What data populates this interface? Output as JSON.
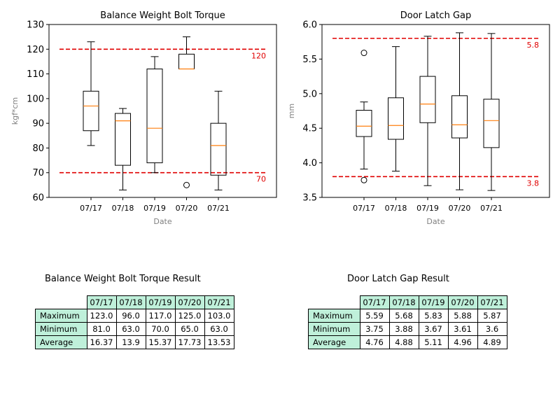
{
  "chart_data": [
    {
      "type": "box",
      "title": "Balance Weight Bolt Torque",
      "xlabel": "Date",
      "ylabel": "kgf*cm",
      "ylim": [
        60,
        130
      ],
      "yticks": [
        60,
        70,
        80,
        90,
        100,
        110,
        120,
        130
      ],
      "categories": [
        "07/17",
        "07/18",
        "07/19",
        "07/20",
        "07/21"
      ],
      "boxes": [
        {
          "min": 81,
          "q1": 87,
          "median": 97,
          "q3": 103,
          "max": 123,
          "outliers": []
        },
        {
          "min": 63,
          "q1": 73,
          "median": 91,
          "q3": 94,
          "max": 96,
          "outliers": []
        },
        {
          "min": 70,
          "q1": 74,
          "median": 88,
          "q3": 112,
          "max": 117,
          "outliers": []
        },
        {
          "min": 112,
          "q1": 112,
          "median": 112,
          "q3": 118,
          "max": 125,
          "outliers": [
            65
          ]
        },
        {
          "min": 63,
          "q1": 69,
          "median": 81,
          "q3": 90,
          "max": 103,
          "outliers": []
        }
      ],
      "limits": [
        {
          "value": 120,
          "label": "120"
        },
        {
          "value": 70,
          "label": "70"
        }
      ],
      "colors": {
        "box": "#000000",
        "median": "#ff7f0e",
        "limit": "#e00000",
        "axis_label": "#808080"
      }
    },
    {
      "type": "box",
      "title": "Door Latch Gap",
      "xlabel": "Date",
      "ylabel": "mm",
      "ylim": [
        3.5,
        6.0
      ],
      "yticks": [
        "3.5",
        "4.0",
        "4.5",
        "5.0",
        "5.5",
        "6.0"
      ],
      "categories": [
        "07/17",
        "07/18",
        "07/19",
        "07/20",
        "07/21"
      ],
      "boxes": [
        {
          "min": 3.91,
          "q1": 4.38,
          "median": 4.53,
          "q3": 4.76,
          "max": 4.88,
          "outliers": [
            5.59,
            3.75
          ]
        },
        {
          "min": 3.88,
          "q1": 4.34,
          "median": 4.54,
          "q3": 4.94,
          "max": 5.68,
          "outliers": []
        },
        {
          "min": 3.67,
          "q1": 4.58,
          "median": 4.85,
          "q3": 5.25,
          "max": 5.83,
          "outliers": []
        },
        {
          "min": 3.61,
          "q1": 4.36,
          "median": 4.55,
          "q3": 4.97,
          "max": 5.88,
          "outliers": []
        },
        {
          "min": 3.6,
          "q1": 4.22,
          "median": 4.61,
          "q3": 4.92,
          "max": 5.87,
          "outliers": []
        }
      ],
      "limits": [
        {
          "value": 5.8,
          "label": "5.8"
        },
        {
          "value": 3.8,
          "label": "3.8"
        }
      ],
      "colors": {
        "box": "#000000",
        "median": "#ff7f0e",
        "limit": "#e00000",
        "axis_label": "#808080"
      }
    }
  ],
  "tables": [
    {
      "title": "Balance Weight Bolt Torque Result",
      "columns": [
        "07/17",
        "07/18",
        "07/19",
        "07/20",
        "07/21"
      ],
      "rows": [
        {
          "label": "Maximum",
          "values": [
            "123.0",
            "96.0",
            "117.0",
            "125.0",
            "103.0"
          ]
        },
        {
          "label": "Minimum",
          "values": [
            "81.0",
            "63.0",
            "70.0",
            "65.0",
            "63.0"
          ]
        },
        {
          "label": "Average",
          "values": [
            "16.37",
            "13.9",
            "15.37",
            "17.73",
            "13.53"
          ]
        }
      ]
    },
    {
      "title": "Door Latch Gap Result",
      "columns": [
        "07/17",
        "07/18",
        "07/19",
        "07/20",
        "07/21"
      ],
      "rows": [
        {
          "label": "Maximum",
          "values": [
            "5.59",
            "5.68",
            "5.83",
            "5.88",
            "5.87"
          ]
        },
        {
          "label": "Minimum",
          "values": [
            "3.75",
            "3.88",
            "3.67",
            "3.61",
            "3.6"
          ]
        },
        {
          "label": "Average",
          "values": [
            "4.76",
            "4.88",
            "5.11",
            "4.96",
            "4.89"
          ]
        }
      ]
    }
  ]
}
